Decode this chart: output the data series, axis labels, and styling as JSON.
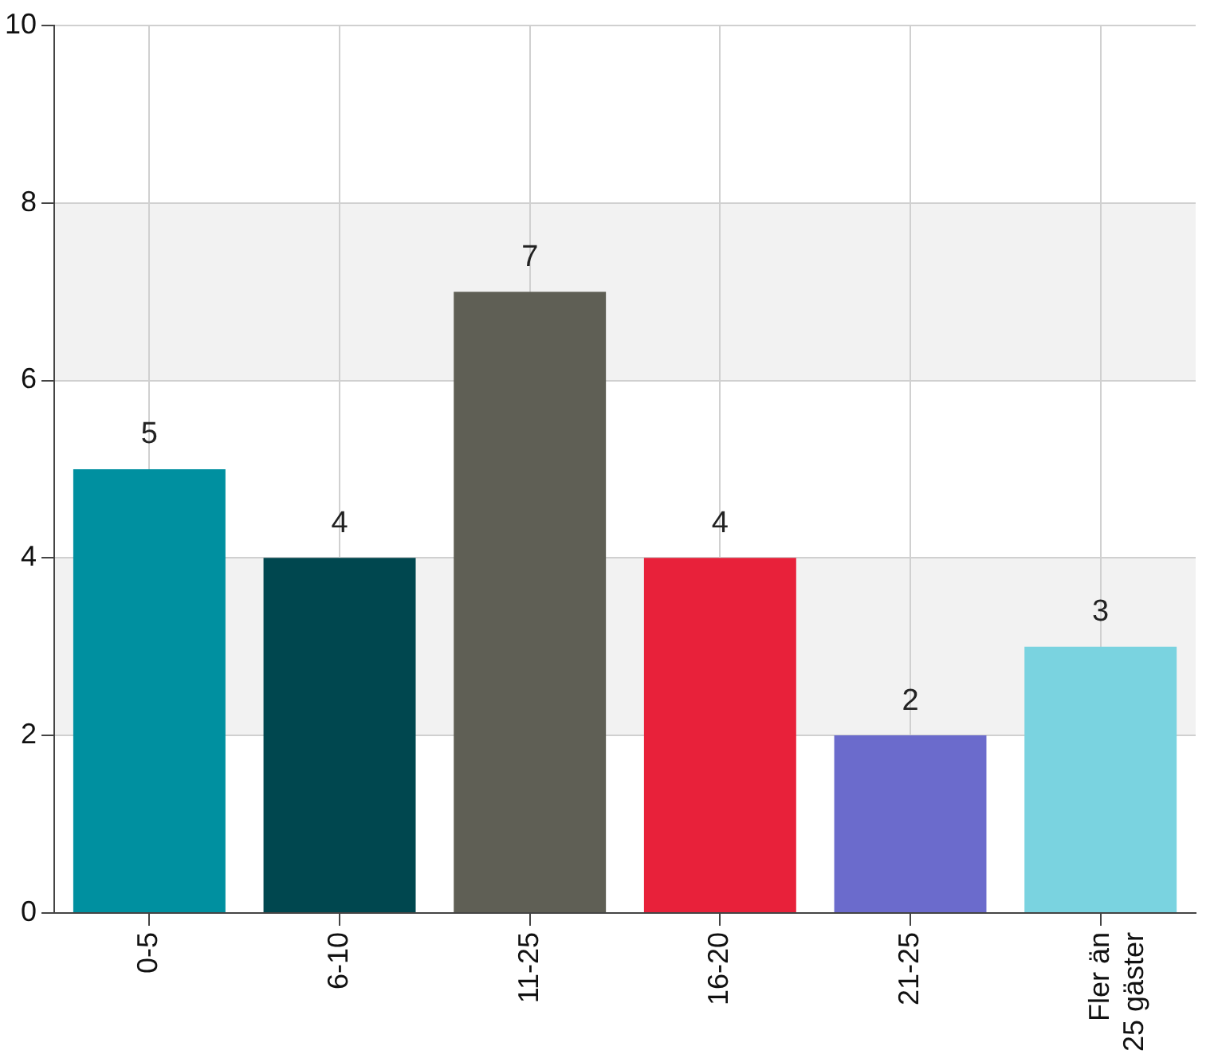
{
  "chart_data": {
    "type": "bar",
    "categories": [
      "0-5",
      "6-10",
      "11-25",
      "16-20",
      "21-25",
      "Fler än 25 gäster"
    ],
    "values": [
      5,
      4,
      7,
      4,
      2,
      3
    ],
    "colors": [
      "#0090a0",
      "#00474f",
      "#5f5f55",
      "#e8213a",
      "#6b6bcc",
      "#7ad3e0"
    ],
    "ylim": [
      0,
      10
    ],
    "yticks": [
      0,
      2,
      4,
      6,
      8,
      10
    ],
    "bands": [
      {
        "axis": "y",
        "from": 2,
        "to": 4,
        "color": "#f2f2f2"
      },
      {
        "axis": "y",
        "from": 6,
        "to": 8,
        "color": "#f2f2f2"
      }
    ],
    "grid": true,
    "legend": false,
    "data_labels": true
  }
}
